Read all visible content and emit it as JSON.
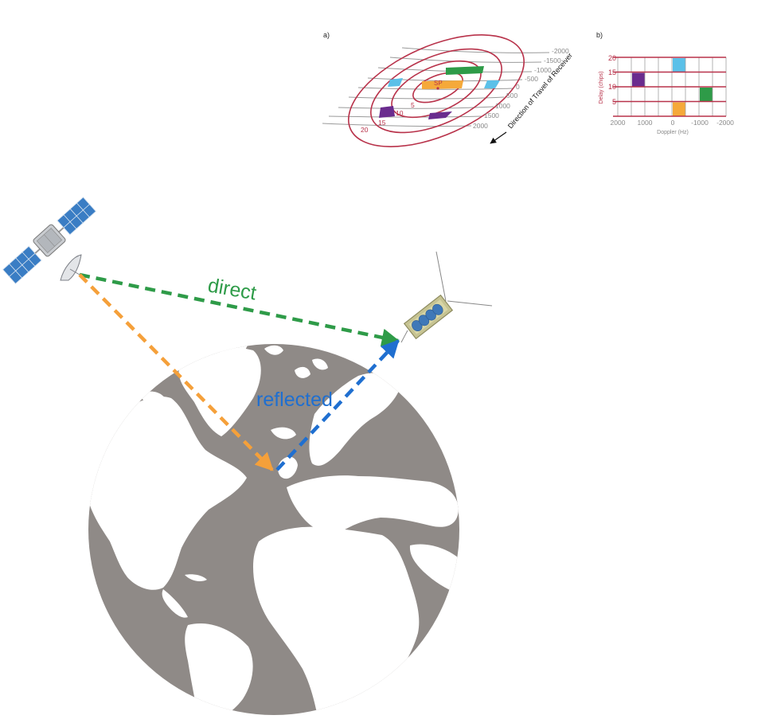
{
  "panel_a": {
    "label": "a)",
    "sp_label": "SP",
    "direction_label": "Direction of Travel of Receiver",
    "delay_labels": [
      "5",
      "10",
      "15",
      "20"
    ],
    "doppler_labels": [
      "-2000",
      "-1500",
      "-1000",
      "-500",
      "0",
      "500",
      "1000",
      "1500",
      "2000"
    ]
  },
  "panel_b": {
    "label": "b)",
    "y_axis_label": "Delay (chips)",
    "x_axis_label": "Doppler (Hz)",
    "y_ticks": [
      "20",
      "15",
      "10",
      "5"
    ],
    "x_ticks": [
      "2000",
      "1000",
      "0",
      "-1000",
      "-2000"
    ],
    "cells": [
      {
        "col": 1,
        "row": 1,
        "color": "#6a2c8e"
      },
      {
        "col": 4,
        "row": 0,
        "color": "#5bc0e8"
      },
      {
        "col": 6,
        "row": 2,
        "color": "#2e9b48"
      },
      {
        "col": 4,
        "row": 3,
        "color": "#f5a93a"
      }
    ]
  },
  "scene": {
    "direct_label": "direct",
    "reflected_label": "reflected"
  },
  "colors": {
    "contour": "#b8324a",
    "direct": "#2e9b48",
    "incident": "#f5a03a",
    "reflected": "#1f6fd0",
    "earth_ocean": "#8f8a87",
    "land": "#ffffff",
    "grid_text": "#8a8a8a"
  }
}
